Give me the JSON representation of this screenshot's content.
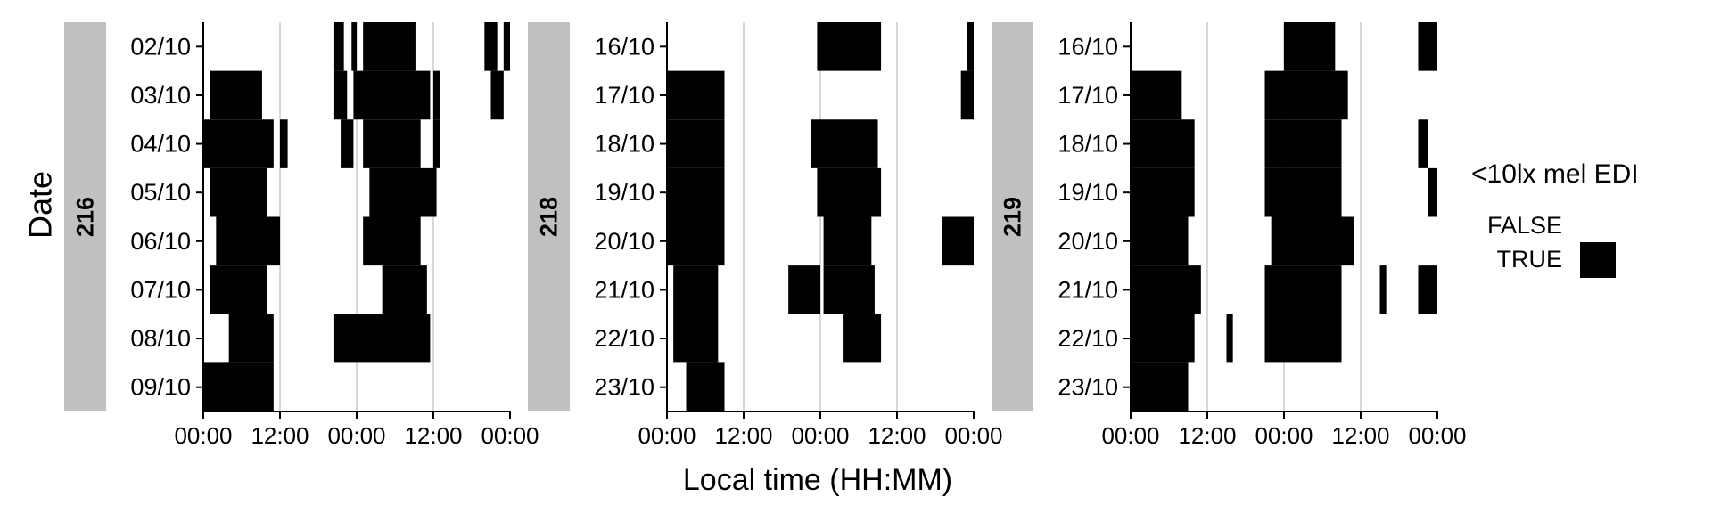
{
  "chart_data": {
    "type": "heatmap",
    "ylabel": "Date",
    "xlabel": "Local time (HH:MM)",
    "x_tick_labels": [
      "00:00",
      "12:00",
      "00:00",
      "12:00",
      "00:00"
    ],
    "xlim_hours": [
      0,
      48
    ],
    "grid": "vertical at 12:00, 24:00, 36:00",
    "legend": {
      "title": "<10lx mel EDI",
      "placement": "right",
      "entries": [
        {
          "label": "FALSE",
          "color": "#ffffff"
        },
        {
          "label": "TRUE",
          "color": "#000000"
        }
      ]
    },
    "colors": {
      "true": "#000000",
      "false": "#ffffff",
      "strip": "#c0c0c0",
      "grid": "#cccccc"
    },
    "panels": [
      {
        "id": "216",
        "dates": [
          "02/10",
          "03/10",
          "04/10",
          "05/10",
          "06/10",
          "07/10",
          "08/10",
          "09/10"
        ],
        "segments": [
          [
            [
              20.5,
              22
            ],
            [
              23.2,
              24
            ],
            [
              25,
              33.2
            ],
            [
              44,
              46
            ],
            [
              47,
              48
            ]
          ],
          [
            [
              1,
              9.2
            ],
            [
              20.5,
              22.5
            ],
            [
              23.5,
              35.5
            ],
            [
              36,
              37
            ],
            [
              45,
              47
            ]
          ],
          [
            [
              0,
              11
            ],
            [
              12,
              13.2
            ],
            [
              21.5,
              23.5
            ],
            [
              25,
              34
            ],
            [
              36,
              37
            ]
          ],
          [
            [
              1,
              10
            ],
            [
              26,
              36.5
            ]
          ],
          [
            [
              2,
              12
            ],
            [
              25,
              34
            ]
          ],
          [
            [
              1,
              10
            ],
            [
              28,
              35
            ]
          ],
          [
            [
              4,
              11
            ],
            [
              20.5,
              35.5
            ]
          ],
          [
            [
              0,
              11
            ]
          ]
        ]
      },
      {
        "id": "218",
        "dates": [
          "16/10",
          "17/10",
          "18/10",
          "19/10",
          "20/10",
          "21/10",
          "22/10",
          "23/10"
        ],
        "segments": [
          [
            [
              23.5,
              33.5
            ],
            [
              47,
              48
            ]
          ],
          [
            [
              0,
              9
            ],
            [
              46,
              48
            ]
          ],
          [
            [
              0,
              9
            ],
            [
              22.5,
              33
            ]
          ],
          [
            [
              0,
              9
            ],
            [
              23.5,
              33.5
            ]
          ],
          [
            [
              0,
              9
            ],
            [
              24.5,
              32
            ],
            [
              43,
              48
            ]
          ],
          [
            [
              1,
              8
            ],
            [
              19,
              24
            ],
            [
              24.5,
              32.5
            ]
          ],
          [
            [
              1,
              8
            ],
            [
              27.5,
              33.5
            ]
          ],
          [
            [
              3,
              9
            ]
          ]
        ]
      },
      {
        "id": "219",
        "dates": [
          "16/10",
          "17/10",
          "18/10",
          "19/10",
          "20/10",
          "21/10",
          "22/10",
          "23/10"
        ],
        "segments": [
          [
            [
              24,
              32
            ],
            [
              45,
              48
            ]
          ],
          [
            [
              0,
              8
            ],
            [
              21,
              34
            ]
          ],
          [
            [
              0,
              10
            ],
            [
              21,
              33
            ],
            [
              45,
              46.5
            ]
          ],
          [
            [
              0,
              10
            ],
            [
              21,
              33
            ],
            [
              46.5,
              48
            ]
          ],
          [
            [
              0,
              9
            ],
            [
              22,
              35
            ]
          ],
          [
            [
              0,
              11
            ],
            [
              21,
              33
            ],
            [
              39,
              40
            ],
            [
              45,
              48
            ]
          ],
          [
            [
              0,
              10
            ],
            [
              15,
              16
            ],
            [
              21,
              33
            ]
          ],
          [
            [
              0,
              9
            ]
          ]
        ]
      }
    ]
  }
}
